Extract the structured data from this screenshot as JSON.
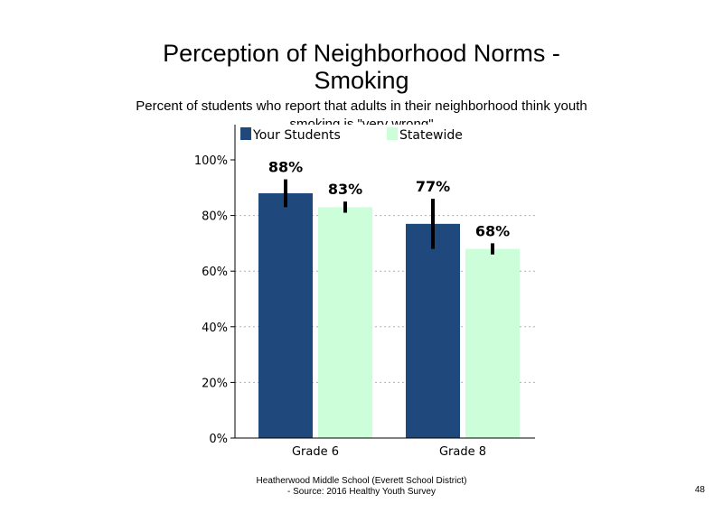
{
  "chart_data": {
    "type": "bar",
    "title": "Perception of Neighborhood Norms - Smoking",
    "subtitle": "Percent of students who report that adults in their neighborhood think youth smoking is \"very wrong\"",
    "categories": [
      "Grade 6",
      "Grade 8"
    ],
    "series": [
      {
        "name": "Your Students",
        "values": [
          88,
          77
        ],
        "error_low": [
          83,
          68
        ],
        "error_high": [
          93,
          86
        ],
        "labels": [
          "88%",
          "77%"
        ]
      },
      {
        "name": "Statewide",
        "values": [
          83,
          68
        ],
        "error_low": [
          81,
          66
        ],
        "error_high": [
          85,
          70
        ],
        "labels": [
          "83%",
          "68%"
        ]
      }
    ],
    "y_ticks": [
      "0%",
      "20%",
      "40%",
      "60%",
      "80%",
      "100%"
    ],
    "ylim": [
      0,
      100
    ],
    "legend_position": "top",
    "grid": "dotted horizontal",
    "colors": {
      "your_students": "#1F497D",
      "statewide": "#CCFFD9"
    }
  },
  "footer": {
    "line1": "Heatherwood Middle School (Everett School District)",
    "line2": "- Source: 2016 Healthy Youth Survey"
  },
  "page_number": "48"
}
